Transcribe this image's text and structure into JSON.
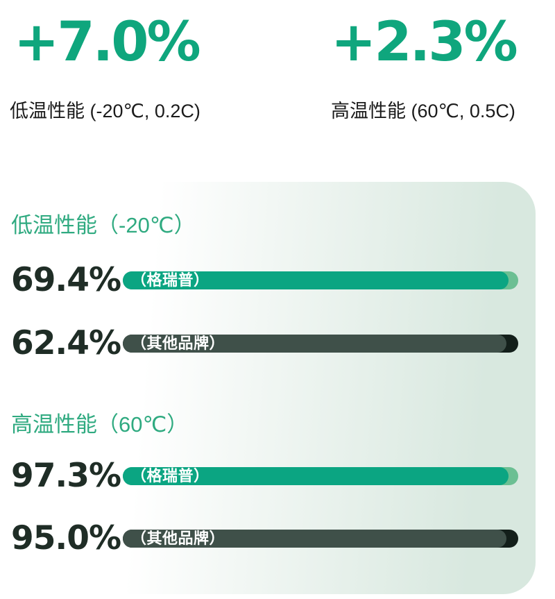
{
  "colors": {
    "accent_green": "#0fa67d",
    "heading_green": "#2faa80",
    "bar_green": "#0ba582",
    "bar_green_cap": "#6cbf93",
    "bar_dark": "#3f5049",
    "bar_dark_cap": "#131f1a",
    "value_text": "#1f2d26",
    "caption_text": "#1b1b1b",
    "card_gradient_start": "#ffffff",
    "card_gradient_end": "#d8e8df"
  },
  "chart_data": {
    "type": "bar",
    "unit": "%",
    "xlim": [
      0,
      100
    ],
    "legend": [
      "格瑞普",
      "其他品牌"
    ],
    "legend_position": "inside-bars",
    "grid": false,
    "deltas": [
      {
        "text": "+7.0%",
        "caption": "低温性能 (-20℃, 0.2C)"
      },
      {
        "text": "+2.3%",
        "caption": "高温性能 (60℃, 0.5C)"
      }
    ],
    "groups": [
      {
        "title": "低温性能（-20℃）",
        "bars": [
          {
            "series": "格瑞普",
            "bar_label": "（格瑞普）",
            "value": 69.4,
            "value_display": "69.4%",
            "color": "#0ba582"
          },
          {
            "series": "其他品牌",
            "bar_label": "（其他品牌）",
            "value": 62.4,
            "value_display": "62.4%",
            "color": "#3f5049"
          }
        ]
      },
      {
        "title": "高温性能（60℃）",
        "bars": [
          {
            "series": "格瑞普",
            "bar_label": "（格瑞普）",
            "value": 97.3,
            "value_display": "97.3%",
            "color": "#0ba582"
          },
          {
            "series": "其他品牌",
            "bar_label": "（其他品牌）",
            "value": 95.0,
            "value_display": "95.0%",
            "color": "#3f5049"
          }
        ]
      }
    ]
  }
}
